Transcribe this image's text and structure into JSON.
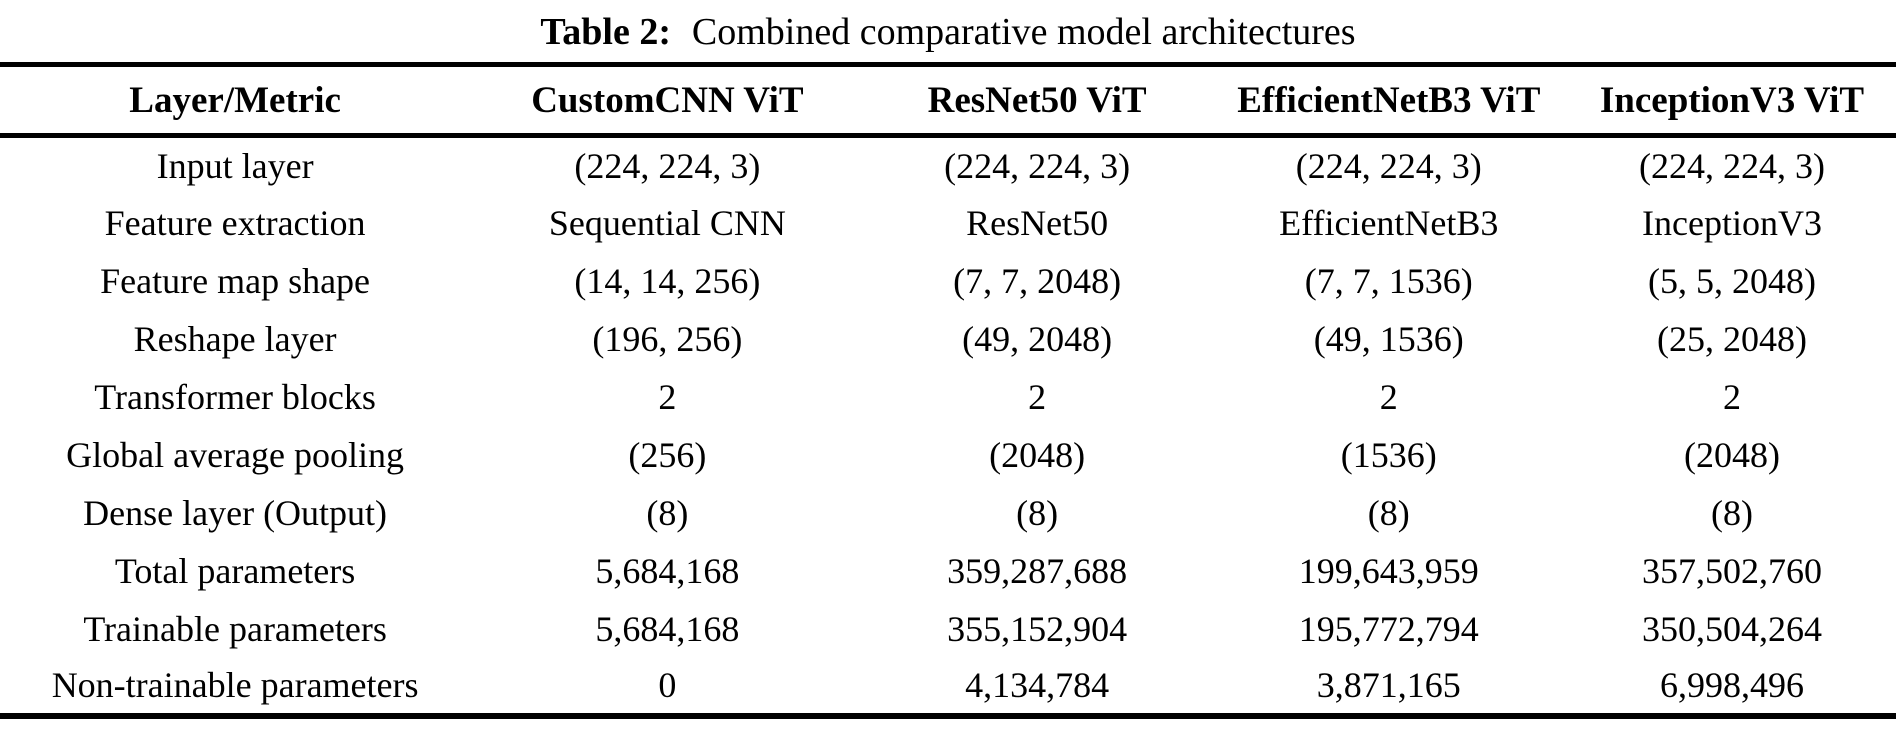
{
  "caption": {
    "label": "Table 2:",
    "text": "Combined comparative model architectures"
  },
  "table": {
    "columns": [
      "Layer/Metric",
      "CustomCNN ViT",
      "ResNet50 ViT",
      "EfficientNetB3 ViT",
      "InceptionV3 ViT"
    ],
    "rows": [
      {
        "metric": "Input layer",
        "values": [
          "(224, 224, 3)",
          "(224, 224, 3)",
          "(224, 224, 3)",
          "(224, 224, 3)"
        ]
      },
      {
        "metric": "Feature extraction",
        "values": [
          "Sequential CNN",
          "ResNet50",
          "EfficientNetB3",
          "InceptionV3"
        ]
      },
      {
        "metric": "Feature map shape",
        "values": [
          "(14, 14, 256)",
          "(7, 7, 2048)",
          "(7, 7, 1536)",
          "(5, 5, 2048)"
        ]
      },
      {
        "metric": "Reshape layer",
        "values": [
          "(196, 256)",
          "(49, 2048)",
          "(49, 1536)",
          "(25, 2048)"
        ]
      },
      {
        "metric": "Transformer blocks",
        "values": [
          "2",
          "2",
          "2",
          "2"
        ]
      },
      {
        "metric": "Global average pooling",
        "values": [
          "(256)",
          "(2048)",
          "(1536)",
          "(2048)"
        ]
      },
      {
        "metric": "Dense layer (Output)",
        "values": [
          "(8)",
          "(8)",
          "(8)",
          "(8)"
        ]
      },
      {
        "metric": "Total parameters",
        "values": [
          "5,684,168",
          "359,287,688",
          "199,643,959",
          "357,502,760"
        ]
      },
      {
        "metric": "Trainable parameters",
        "values": [
          "5,684,168",
          "355,152,904",
          "195,772,794",
          "350,504,264"
        ]
      },
      {
        "metric": "Non-trainable parameters",
        "values": [
          "0",
          "4,134,784",
          "3,871,165",
          "6,998,496"
        ]
      }
    ]
  },
  "colors": {
    "text": "#000000",
    "background": "#ffffff",
    "rule": "#000000"
  }
}
